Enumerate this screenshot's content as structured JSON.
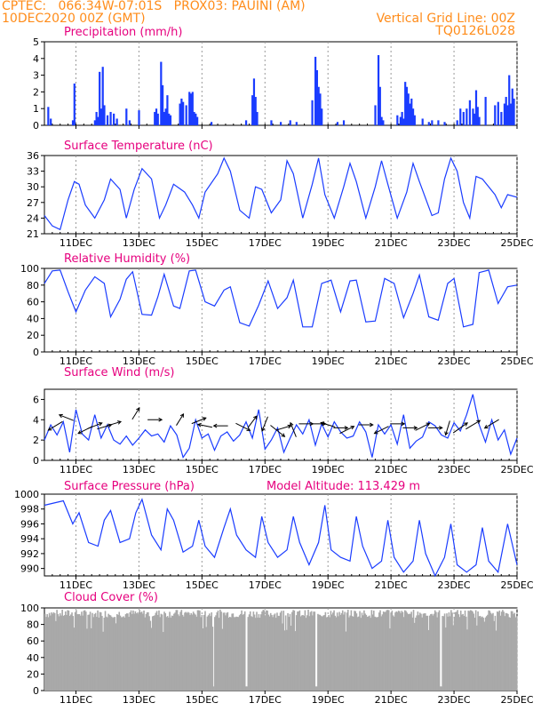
{
  "header": {
    "line1_left": "CPTEC:   066:34W-07:01S   PROX03: PAUINI (AM)",
    "line2_left": "10DEC2020 00Z (GMT)",
    "line2_right": "Vertical Grid Line: 00Z",
    "line3_right": "TQ0126L028"
  },
  "colors": {
    "header": "#ff8c1a",
    "title": "#e6007e",
    "line": "#1a3cff",
    "bar": "#1a3cff",
    "cloud": "#a9a9a9",
    "grid": "#999999"
  },
  "x_axis": {
    "labels": [
      "11DEC",
      "13DEC",
      "15DEC",
      "17DEC",
      "19DEC",
      "21DEC",
      "23DEC",
      "25DEC"
    ],
    "tick_days": [
      11,
      13,
      15,
      17,
      19,
      21,
      23,
      25
    ],
    "range": [
      10.0,
      25.0
    ]
  },
  "chart_data": [
    {
      "type": "bar",
      "title": "Precipitation (mm/h)",
      "ylim": [
        0,
        5
      ],
      "yticks": [
        0,
        1,
        2,
        3,
        4,
        5
      ],
      "x": [
        10.12,
        10.2,
        10.9,
        10.95,
        11.6,
        11.65,
        11.7,
        11.75,
        11.8,
        11.85,
        11.9,
        12.0,
        12.1,
        12.2,
        12.3,
        12.6,
        12.7,
        13.0,
        13.5,
        13.55,
        13.6,
        13.7,
        13.75,
        13.8,
        13.85,
        13.9,
        13.95,
        14.0,
        14.3,
        14.35,
        14.4,
        14.5,
        14.6,
        14.65,
        14.7,
        14.75,
        14.8,
        14.85,
        15.3,
        16.4,
        16.6,
        16.65,
        16.7,
        16.75,
        17.2,
        17.5,
        17.8,
        18.0,
        18.5,
        18.6,
        18.65,
        18.7,
        18.75,
        18.8,
        19.3,
        19.5,
        20.5,
        20.6,
        20.65,
        20.7,
        20.75,
        21.2,
        21.3,
        21.35,
        21.4,
        21.45,
        21.5,
        21.55,
        21.6,
        21.65,
        21.7,
        21.75,
        22.0,
        22.2,
        22.3,
        22.5,
        22.7,
        23.1,
        23.2,
        23.3,
        23.4,
        23.5,
        23.6,
        23.65,
        23.7,
        23.75,
        23.8,
        24.0,
        24.3,
        24.4,
        24.5,
        24.6,
        24.65,
        24.7,
        24.75,
        24.8,
        24.85,
        24.9
      ],
      "values": [
        1.1,
        0.4,
        0.3,
        2.5,
        0.3,
        0.8,
        0.5,
        3.2,
        1.0,
        3.5,
        1.2,
        0.6,
        0.8,
        0.7,
        0.4,
        1.0,
        0.3,
        0.9,
        0.8,
        1.0,
        0.7,
        3.8,
        2.4,
        0.8,
        1.0,
        1.8,
        0.7,
        0.6,
        1.3,
        1.6,
        1.4,
        1.2,
        2.0,
        1.9,
        2.0,
        0.8,
        0.7,
        0.5,
        0.2,
        0.3,
        1.8,
        2.8,
        1.7,
        0.8,
        0.3,
        0.2,
        0.3,
        0.2,
        1.5,
        4.1,
        3.3,
        2.3,
        1.9,
        1.0,
        0.2,
        0.3,
        1.2,
        4.2,
        2.3,
        0.5,
        0.3,
        0.6,
        0.5,
        0.8,
        0.4,
        2.6,
        2.3,
        1.9,
        1.3,
        1.6,
        1.0,
        0.6,
        0.4,
        0.2,
        0.3,
        0.3,
        0.2,
        0.3,
        1.0,
        0.8,
        1.0,
        1.5,
        1.0,
        0.7,
        2.1,
        1.1,
        0.5,
        1.7,
        1.2,
        1.4,
        0.8,
        1.3,
        1.7,
        1.2,
        3.0,
        1.3,
        2.2,
        1.6
      ]
    },
    {
      "type": "line",
      "title": "Surface Temperature (nC)",
      "ylim": [
        21,
        36
      ],
      "yticks": [
        21,
        24,
        27,
        30,
        33,
        36
      ],
      "x": [
        10.0,
        10.25,
        10.5,
        10.75,
        10.95,
        11.1,
        11.3,
        11.6,
        11.9,
        12.1,
        12.4,
        12.6,
        12.85,
        13.1,
        13.4,
        13.65,
        13.85,
        14.1,
        14.45,
        14.7,
        14.9,
        15.1,
        15.5,
        15.7,
        15.9,
        16.2,
        16.5,
        16.7,
        16.9,
        17.2,
        17.5,
        17.7,
        17.9,
        18.2,
        18.5,
        18.7,
        18.9,
        19.2,
        19.5,
        19.7,
        19.9,
        20.2,
        20.5,
        20.7,
        20.9,
        21.2,
        21.5,
        21.7,
        21.9,
        22.3,
        22.5,
        22.7,
        22.9,
        23.1,
        23.3,
        23.5,
        23.7,
        23.9,
        24.3,
        24.5,
        24.7,
        25.0
      ],
      "values": [
        24.5,
        22.5,
        21.8,
        27.5,
        31.0,
        30.5,
        26.5,
        24.0,
        27.5,
        31.5,
        29.5,
        24.0,
        29.5,
        33.5,
        31.5,
        24.0,
        26.5,
        30.5,
        29.0,
        26.5,
        24.0,
        29.0,
        32.5,
        35.5,
        33.0,
        25.5,
        24.0,
        30.0,
        29.5,
        25.0,
        27.5,
        35.0,
        32.5,
        24.0,
        30.5,
        35.5,
        28.5,
        24.0,
        30.0,
        34.5,
        31.0,
        24.0,
        30.0,
        35.0,
        30.5,
        24.0,
        29.0,
        34.5,
        31.0,
        24.5,
        25.0,
        31.5,
        35.5,
        33.0,
        27.0,
        24.0,
        32.0,
        31.5,
        28.5,
        26.0,
        28.5,
        28.0
      ]
    },
    {
      "type": "line",
      "title": "Relative Humidity (%)",
      "ylim": [
        0,
        100
      ],
      "yticks": [
        0,
        20,
        40,
        60,
        80,
        100
      ],
      "x": [
        10.0,
        10.25,
        10.5,
        10.75,
        11.0,
        11.3,
        11.6,
        11.9,
        12.1,
        12.4,
        12.6,
        12.8,
        13.1,
        13.4,
        13.6,
        13.8,
        14.1,
        14.3,
        14.6,
        14.8,
        15.1,
        15.4,
        15.7,
        15.9,
        16.2,
        16.5,
        16.8,
        17.1,
        17.4,
        17.7,
        17.9,
        18.2,
        18.5,
        18.8,
        19.1,
        19.4,
        19.7,
        19.9,
        20.2,
        20.5,
        20.8,
        21.1,
        21.4,
        21.7,
        21.9,
        22.2,
        22.5,
        22.8,
        23.0,
        23.3,
        23.6,
        23.8,
        24.1,
        24.4,
        24.7,
        25.0
      ],
      "values": [
        82,
        97,
        98,
        72,
        48,
        74,
        90,
        82,
        42,
        63,
        87,
        96,
        45,
        44,
        66,
        93,
        55,
        52,
        97,
        98,
        60,
        55,
        74,
        78,
        35,
        31,
        56,
        85,
        52,
        65,
        86,
        30,
        30,
        82,
        86,
        48,
        85,
        86,
        36,
        37,
        88,
        82,
        41,
        70,
        92,
        42,
        38,
        82,
        88,
        30,
        33,
        95,
        98,
        58,
        78,
        80
      ]
    },
    {
      "type": "line",
      "title": "Surface Wind (m/s)",
      "ylim": [
        0,
        7
      ],
      "yticks": [
        0,
        2,
        4,
        6
      ],
      "x": [
        10.0,
        10.2,
        10.4,
        10.6,
        10.8,
        11.0,
        11.2,
        11.4,
        11.6,
        11.8,
        12.0,
        12.2,
        12.4,
        12.6,
        12.8,
        13.0,
        13.2,
        13.4,
        13.6,
        13.8,
        14.0,
        14.2,
        14.4,
        14.6,
        14.8,
        15.0,
        15.2,
        15.4,
        15.6,
        15.8,
        16.0,
        16.2,
        16.4,
        16.6,
        16.8,
        17.0,
        17.2,
        17.4,
        17.6,
        17.8,
        18.0,
        18.2,
        18.4,
        18.6,
        18.8,
        19.0,
        19.2,
        19.4,
        19.6,
        19.8,
        20.0,
        20.2,
        20.4,
        20.6,
        20.8,
        21.0,
        21.2,
        21.4,
        21.6,
        21.8,
        22.0,
        22.2,
        22.4,
        22.6,
        22.8,
        23.0,
        23.2,
        23.4,
        23.6,
        23.8,
        24.0,
        24.2,
        24.4,
        24.6,
        24.8,
        25.0
      ],
      "values": [
        2.0,
        3.5,
        2.5,
        3.8,
        0.8,
        5.0,
        2.6,
        2.0,
        4.5,
        2.2,
        3.5,
        2.0,
        1.6,
        2.4,
        1.5,
        2.2,
        3.0,
        2.4,
        2.6,
        1.8,
        3.4,
        2.5,
        0.3,
        1.2,
        4.0,
        2.2,
        2.6,
        1.0,
        2.4,
        2.8,
        1.9,
        2.5,
        3.8,
        2.2,
        5.0,
        1.1,
        2.0,
        3.2,
        0.8,
        2.2,
        3.5,
        2.6,
        4.0,
        1.5,
        3.6,
        2.3,
        3.8,
        2.8,
        2.2,
        2.4,
        3.8,
        2.8,
        0.3,
        3.5,
        2.6,
        3.5,
        1.6,
        4.5,
        1.2,
        1.9,
        2.3,
        3.8,
        3.4,
        2.5,
        2.2,
        3.7,
        2.9,
        4.5,
        6.5,
        3.5,
        1.8,
        4.0,
        2.0,
        3.0,
        0.6,
        2.2
      ]
    },
    {
      "type": "line",
      "title": "Surface Pressure (hPa)",
      "annotation": "Model Altitude: 113.429 m",
      "ylim": [
        989,
        1000
      ],
      "yticks": [
        990,
        992,
        994,
        996,
        998,
        1000
      ],
      "x": [
        10.0,
        10.3,
        10.6,
        10.9,
        11.1,
        11.4,
        11.7,
        11.9,
        12.1,
        12.4,
        12.7,
        12.9,
        13.1,
        13.4,
        13.7,
        13.9,
        14.1,
        14.4,
        14.7,
        14.9,
        15.1,
        15.4,
        15.7,
        15.9,
        16.1,
        16.4,
        16.7,
        16.9,
        17.1,
        17.4,
        17.7,
        17.9,
        18.1,
        18.4,
        18.7,
        18.9,
        19.1,
        19.4,
        19.7,
        19.9,
        20.1,
        20.4,
        20.7,
        20.9,
        21.1,
        21.4,
        21.7,
        21.9,
        22.1,
        22.4,
        22.7,
        22.9,
        23.1,
        23.4,
        23.7,
        23.9,
        24.1,
        24.4,
        24.7,
        25.0
      ],
      "values": [
        998.5,
        998.8,
        999.1,
        996.0,
        997.5,
        993.5,
        993.0,
        996.5,
        997.8,
        993.5,
        994.0,
        997.5,
        999.3,
        994.5,
        992.5,
        998.0,
        996.5,
        992.2,
        993.0,
        996.5,
        993.0,
        991.5,
        995.5,
        998.0,
        994.5,
        992.5,
        991.5,
        997.0,
        993.5,
        991.5,
        992.5,
        997.0,
        993.5,
        990.5,
        993.5,
        998.5,
        992.5,
        991.5,
        991.0,
        997.0,
        993.0,
        990.0,
        991.0,
        996.5,
        991.5,
        989.5,
        991.0,
        996.5,
        992.0,
        989.0,
        991.5,
        996.0,
        990.5,
        989.5,
        990.5,
        995.5,
        991.0,
        989.5,
        996.0,
        990.5
      ]
    },
    {
      "type": "area",
      "title": "Cloud Cover (%)",
      "ylim": [
        0,
        100
      ],
      "yticks": [
        0,
        20,
        40,
        60,
        80,
        100
      ]
    }
  ]
}
